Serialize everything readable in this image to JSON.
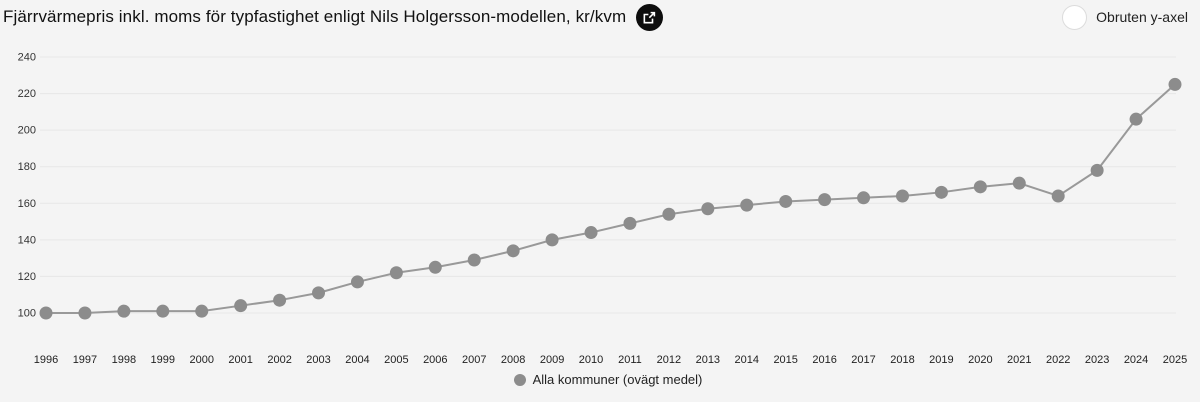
{
  "header": {
    "title": "Fjärrvärmepris inkl. moms för typfastighet enligt Nils Holgersson-modellen, kr/kvm"
  },
  "controls": {
    "y_axis_toggle_label": "Obruten y-axel",
    "y_axis_toggle_checked": false
  },
  "legend": {
    "label": "Alla kommuner (ovägt medel)"
  },
  "chart_data": {
    "type": "line",
    "title": "Fjärrvärmepris inkl. moms för typfastighet enligt Nils Holgersson-modellen, kr/kvm",
    "x": [
      1996,
      1997,
      1998,
      1999,
      2000,
      2001,
      2002,
      2003,
      2004,
      2005,
      2006,
      2007,
      2008,
      2009,
      2010,
      2011,
      2012,
      2013,
      2014,
      2015,
      2016,
      2017,
      2018,
      2019,
      2020,
      2021,
      2022,
      2023,
      2024,
      2025
    ],
    "series": [
      {
        "name": "Alla kommuner (ovägt medel)",
        "values": [
          100,
          100,
          101,
          101,
          101,
          104,
          107,
          111,
          117,
          122,
          125,
          129,
          134,
          140,
          144,
          149,
          154,
          157,
          159,
          161,
          162,
          163,
          164,
          166,
          169,
          171,
          164,
          178,
          206,
          225
        ]
      }
    ],
    "xlabel": "",
    "ylabel": "",
    "y_ticks": [
      100,
      120,
      140,
      160,
      180,
      200,
      220,
      240
    ],
    "ylim": [
      100,
      240
    ],
    "grid": "horizontal-only",
    "legend_position": "bottom-center",
    "colors": {
      "line": "#999999",
      "marker": "#8c8c8c",
      "grid": "#e7e7e7",
      "tick_label": "#333333",
      "background": "#f4f4f4"
    }
  }
}
